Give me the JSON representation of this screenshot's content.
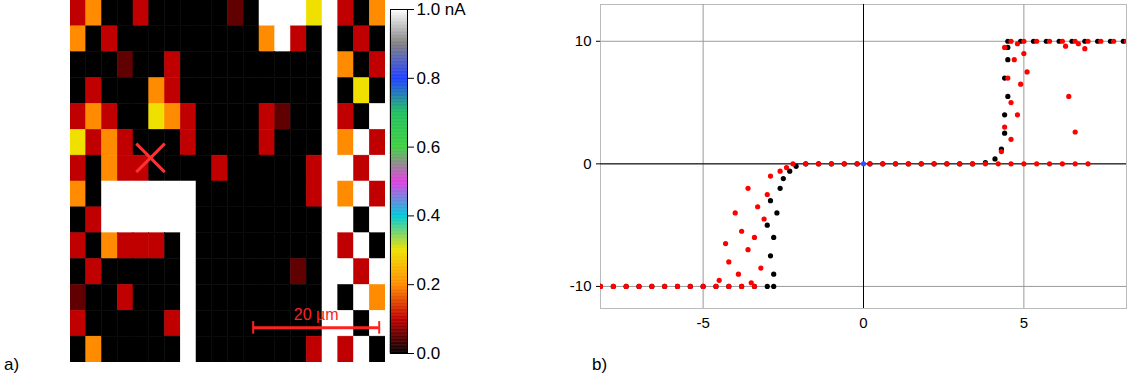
{
  "chart_data": [
    {
      "type": "heatmap",
      "panel_label": "a)",
      "xlim": [
        0,
        50
      ],
      "ylim": [
        0,
        57.5
      ],
      "tick_labels": false,
      "cells": [
        [
          0.1,
          0.2,
          0,
          0,
          0.1,
          0,
          0,
          0,
          0,
          0,
          0.05,
          0,
          1,
          1,
          1,
          0.3,
          1,
          0.1,
          0,
          0.2
        ],
        [
          0.2,
          0,
          0.1,
          0,
          0,
          0,
          0,
          0,
          0,
          0,
          0,
          0,
          0.2,
          1,
          0.1,
          0,
          1,
          0,
          0.1,
          0
        ],
        [
          0,
          0,
          0,
          0.05,
          0,
          0,
          0.1,
          0,
          0,
          0,
          0,
          0,
          0,
          0,
          0,
          0,
          1,
          0.2,
          0,
          0.1
        ],
        [
          0,
          0.1,
          0,
          0,
          0,
          0.2,
          0.1,
          0,
          0,
          0,
          0,
          0,
          0,
          0,
          0,
          0,
          1,
          0,
          0.3,
          0
        ],
        [
          0.1,
          0.2,
          0.1,
          0,
          0,
          0.3,
          0.2,
          0.1,
          0,
          0,
          0,
          0,
          0.1,
          0.05,
          0,
          0,
          1,
          0.1,
          0,
          1
        ],
        [
          0.3,
          0.1,
          0.2,
          0.1,
          0,
          0,
          0,
          0.1,
          0,
          0,
          0,
          0,
          0.1,
          0,
          0,
          0,
          1,
          0.2,
          1,
          0.1
        ],
        [
          0.1,
          0,
          0.2,
          0.1,
          0.1,
          0,
          0,
          0,
          0,
          0.1,
          0,
          0,
          0,
          0,
          0,
          0.1,
          1,
          1,
          0.1,
          1
        ],
        [
          0.2,
          0,
          1,
          1,
          1,
          1,
          1,
          1,
          0,
          0,
          0,
          0,
          0,
          0,
          0,
          0.1,
          1,
          0.2,
          1,
          0.1
        ],
        [
          0,
          0.1,
          1,
          1,
          1,
          1,
          1,
          1,
          0,
          0,
          0,
          0,
          0,
          0,
          0,
          0,
          1,
          1,
          0,
          1
        ],
        [
          0.1,
          0,
          0.2,
          0.1,
          0.1,
          0.1,
          0,
          1,
          0,
          0,
          0,
          0,
          0,
          0,
          0,
          0,
          1,
          0.1,
          1,
          0
        ],
        [
          0,
          0.1,
          0,
          0,
          0,
          0,
          0,
          1,
          0,
          0,
          0,
          0,
          0,
          0,
          0.05,
          0,
          1,
          1,
          0.1,
          1
        ],
        [
          0.05,
          0,
          0,
          0.1,
          0,
          0,
          0,
          1,
          0,
          0,
          0,
          0,
          0,
          0,
          0,
          0,
          1,
          0,
          1,
          0.2
        ],
        [
          0.1,
          0,
          0,
          0,
          0,
          0,
          0.1,
          1,
          0,
          0,
          0,
          0,
          0,
          0,
          0,
          0,
          1,
          1,
          0,
          1
        ],
        [
          0,
          0.2,
          0,
          0,
          0,
          0,
          0,
          1,
          0,
          0,
          0,
          0,
          0,
          0,
          0,
          0.1,
          1,
          0.1,
          1,
          0
        ]
      ],
      "colorbar": {
        "range": [
          0,
          1
        ],
        "ticks": [
          {
            "value": 1,
            "label": "1.0 nA"
          },
          0.8,
          0.6,
          0.4,
          0.2,
          {
            "value": 0,
            "label": "0.0"
          }
        ],
        "colors": [
          "#000000",
          "#c00000",
          "#ff8c00",
          "#f0e000",
          "#00c8d8",
          "#e040e0",
          "#40d040",
          "#20c060",
          "#2040ff",
          "#808080",
          "#ffffff"
        ]
      },
      "scale_bar": {
        "x": [
          29,
          49
        ],
        "y": 52,
        "label": "20 µm",
        "color": "#ff2020"
      },
      "annotations": [
        {
          "marker": "x",
          "x": 12.7,
          "y": 25,
          "color": "#ff3030"
        }
      ]
    },
    {
      "type": "scatter",
      "panel_label": "b)",
      "xlim": [
        -8.2,
        8.2
      ],
      "ylim": [
        -11.8,
        13
      ],
      "xticks": [
        -5,
        0,
        5
      ],
      "yticks": [
        -10,
        0,
        10
      ],
      "grid": true,
      "series": [
        {
          "color": "#000000",
          "marker": "circle",
          "x": [
            -8.2,
            -7.8,
            -7.4,
            -7.0,
            -6.6,
            -6.2,
            -5.8,
            -5.4,
            -5.0,
            -4.6,
            -4.2,
            -3.8,
            -3.4,
            -3.0,
            -2.8,
            -2.8,
            -2.9,
            -2.8,
            -3.0,
            -2.7,
            -2.9,
            -2.6,
            -2.5,
            -2.3,
            -2.1,
            -1.8,
            -1.4,
            -1.0,
            -0.6,
            -0.2,
            0.2,
            0.6,
            1.0,
            1.4,
            1.8,
            2.2,
            2.6,
            3.0,
            3.4,
            3.8,
            4.1,
            4.3,
            4.4,
            4.4,
            4.5,
            4.4,
            4.5,
            4.5,
            4.5,
            4.9,
            5.3,
            5.7,
            6.1,
            6.5,
            6.9,
            7.3,
            7.7,
            8.1
          ],
          "values": [
            -10,
            -10,
            -10,
            -10,
            -10,
            -10,
            -10,
            -10,
            -10,
            -10,
            -10,
            -10,
            -10,
            -10,
            -10,
            -9,
            -7.5,
            -6,
            -5,
            -4,
            -3,
            -2,
            -1.2,
            -0.6,
            -0.2,
            0,
            0,
            0,
            0,
            0,
            0,
            0,
            0,
            0,
            0,
            0,
            0,
            0,
            0,
            0.1,
            0.4,
            1.2,
            2.5,
            4,
            5.5,
            7,
            8.5,
            9.5,
            10,
            10,
            10,
            10,
            10,
            10,
            10,
            10,
            10,
            10
          ]
        },
        {
          "color": "#ff0000",
          "marker": "circle",
          "x": [
            -8.2,
            -7.8,
            -7.4,
            -7.0,
            -6.6,
            -6.2,
            -5.8,
            -5.4,
            -5.0,
            -4.6,
            -4.2,
            -3.8,
            -3.4,
            -4.5,
            -4.2,
            -3.9,
            -3.6,
            -3.8,
            -4.0,
            -3.4,
            -3.2,
            -3.3,
            -3.0,
            -3.6,
            -2.9,
            -2.6,
            -2.4,
            -3.5,
            -4.3,
            -3.1,
            -2.2,
            -1.8,
            -1.4,
            -1.0,
            -0.6,
            -0.2,
            0.2,
            0.6,
            1.0,
            1.4,
            1.8,
            2.2,
            2.6,
            3.0,
            3.4,
            3.8,
            4.2,
            4.6,
            5.0,
            5.4,
            5.8,
            6.2,
            6.6,
            7.0,
            4.3,
            4.4,
            4.6,
            4.5,
            4.7,
            4.8,
            4.9,
            5.0,
            4.6,
            4.8,
            5.1,
            4.4,
            4.6,
            5.0,
            5.4,
            5.8,
            6.2,
            6.6,
            7.0,
            7.4,
            7.8,
            8.2,
            6.3,
            6.7,
            6.4,
            6.6,
            6.9
          ],
          "values": [
            -10,
            -10,
            -10,
            -10,
            -10,
            -10,
            -10,
            -10,
            -10,
            -10,
            -10,
            -10,
            -10,
            -9.5,
            -8,
            -9,
            -7,
            -5.5,
            -4,
            -6,
            -8.5,
            -3.5,
            -2.5,
            -2,
            -1,
            -0.6,
            -0.3,
            -9.7,
            -6.5,
            -4.5,
            0,
            0,
            0,
            0,
            0,
            0,
            0,
            0,
            0,
            0,
            0,
            0,
            0,
            0,
            0,
            0,
            0,
            0,
            0,
            0,
            0,
            0,
            0,
            0,
            1,
            3,
            5,
            7,
            8.5,
            4,
            6.5,
            9,
            2,
            9.8,
            7.5,
            9.5,
            10,
            10,
            10,
            10,
            10,
            10,
            10,
            10,
            10,
            10,
            9.6,
            9.8,
            5.5,
            2.6,
            9.4
          ]
        },
        {
          "color": "#3050ff",
          "marker": "circle",
          "x": [
            0
          ],
          "values": [
            0
          ]
        }
      ]
    }
  ]
}
